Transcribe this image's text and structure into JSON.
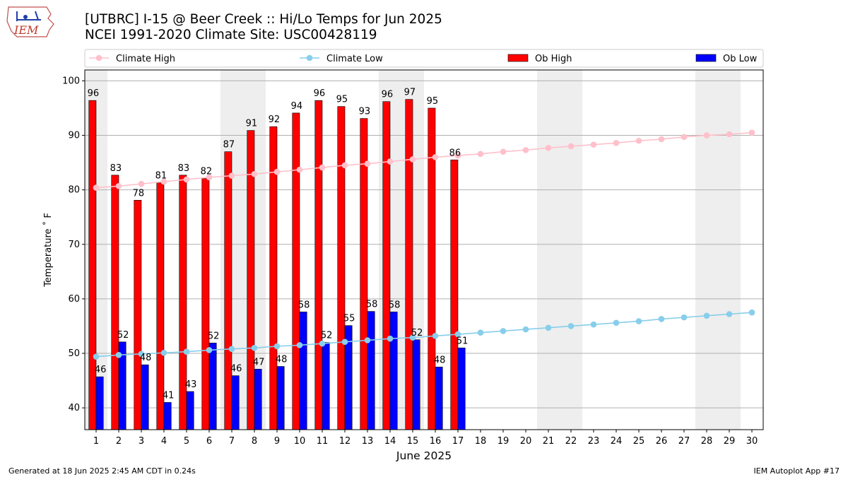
{
  "header": {
    "title_line1": "[UTBRC] I-15 @ Beer Creek  :: Hi/Lo Temps for Jun 2025",
    "title_line2": "NCEI 1991-2020 Climate Site: USC00428119",
    "logo_text": "IEM"
  },
  "footer": {
    "left": "Generated at 18 Jun 2025 2:45 AM CDT in 0.24s",
    "right": "IEM Autoplot App #17"
  },
  "chart_data": {
    "type": "bar",
    "xlabel": "June 2025",
    "ylabel": "Temperature ˚ F",
    "ylim": [
      36,
      102
    ],
    "yticks": [
      40,
      50,
      60,
      70,
      80,
      90,
      100
    ],
    "grid": "horizontal",
    "legend_placement": "top",
    "days": [
      1,
      2,
      3,
      4,
      5,
      6,
      7,
      8,
      9,
      10,
      11,
      12,
      13,
      14,
      15,
      16,
      17,
      18,
      19,
      20,
      21,
      22,
      23,
      24,
      25,
      26,
      27,
      28,
      29,
      30
    ],
    "weekend_shaded_days": [
      1,
      7,
      8,
      14,
      15,
      21,
      22,
      28,
      29
    ],
    "series": [
      {
        "name": "Climate High",
        "kind": "line",
        "color": "#ffc0cb",
        "values": [
          80.4,
          80.7,
          81.1,
          81.5,
          81.9,
          82.3,
          82.6,
          82.9,
          83.3,
          83.7,
          84.1,
          84.5,
          84.8,
          85.2,
          85.6,
          86.0,
          86.3,
          86.6,
          87.0,
          87.3,
          87.7,
          88.0,
          88.3,
          88.6,
          89.0,
          89.3,
          89.7,
          90.0,
          90.2,
          90.5
        ]
      },
      {
        "name": "Climate Low",
        "kind": "line",
        "color": "#87ceeb",
        "values": [
          49.4,
          49.7,
          49.9,
          50.1,
          50.3,
          50.6,
          50.8,
          51.0,
          51.3,
          51.5,
          51.8,
          52.1,
          52.4,
          52.7,
          52.9,
          53.2,
          53.5,
          53.8,
          54.1,
          54.4,
          54.7,
          55.0,
          55.3,
          55.6,
          55.9,
          56.3,
          56.6,
          56.9,
          57.2,
          57.5
        ]
      },
      {
        "name": "Ob High",
        "kind": "bar",
        "color": "#ff0000",
        "values": [
          96.4,
          82.7,
          78.1,
          81.3,
          82.7,
          82.1,
          87.0,
          90.9,
          91.6,
          94.1,
          96.4,
          95.3,
          93.1,
          96.2,
          96.6,
          95.0,
          85.5
        ],
        "labels": [
          "96",
          "83",
          "78",
          "81",
          "83",
          "82",
          "87",
          "91",
          "92",
          "94",
          "96",
          "95",
          "93",
          "96",
          "97",
          "95",
          "86"
        ]
      },
      {
        "name": "Ob Low",
        "kind": "bar",
        "color": "#0000ff",
        "values": [
          45.7,
          52.1,
          47.9,
          41.0,
          43.0,
          51.9,
          45.9,
          47.1,
          47.6,
          57.6,
          52.0,
          55.1,
          57.7,
          57.6,
          52.5,
          47.5,
          51.0
        ],
        "labels": [
          "46",
          "52",
          "48",
          "41",
          "43",
          "52",
          "46",
          "47",
          "48",
          "58",
          "52",
          "55",
          "58",
          "58",
          "52",
          "48",
          "51"
        ]
      }
    ]
  }
}
